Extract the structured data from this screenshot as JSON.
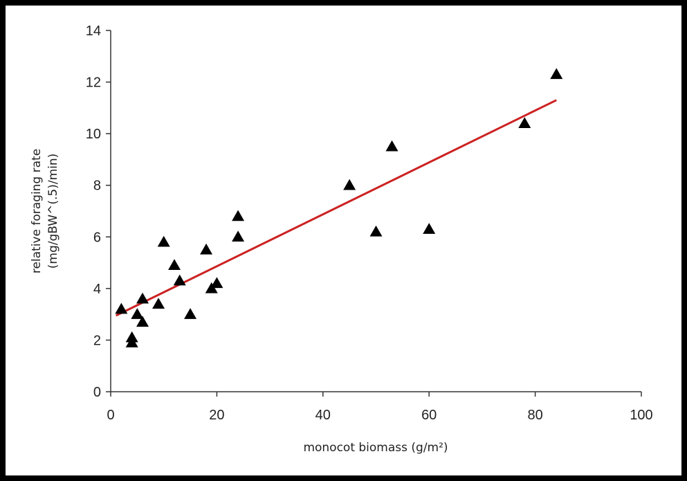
{
  "chart_data": {
    "type": "scatter",
    "title": "",
    "xlabel": "monocot biomass (g/m²)",
    "ylabel_line1": "relative foraging rate",
    "ylabel_line2": "(mg/gBW^(.5)/min)",
    "xlim": [
      0,
      100
    ],
    "ylim": [
      0,
      14
    ],
    "xticks": [
      0,
      20,
      40,
      60,
      80,
      100
    ],
    "yticks": [
      0,
      2,
      4,
      6,
      8,
      10,
      12,
      14
    ],
    "grid": false,
    "series": [
      {
        "marker": "triangle",
        "color": "#000000",
        "points": [
          {
            "x": 2,
            "y": 3.2
          },
          {
            "x": 4,
            "y": 2.1
          },
          {
            "x": 4,
            "y": 1.9
          },
          {
            "x": 5,
            "y": 3.0
          },
          {
            "x": 6,
            "y": 3.6
          },
          {
            "x": 6,
            "y": 2.7
          },
          {
            "x": 9,
            "y": 3.4
          },
          {
            "x": 10,
            "y": 5.8
          },
          {
            "x": 12,
            "y": 4.9
          },
          {
            "x": 13,
            "y": 4.3
          },
          {
            "x": 15,
            "y": 3.0
          },
          {
            "x": 18,
            "y": 5.5
          },
          {
            "x": 19,
            "y": 4.0
          },
          {
            "x": 20,
            "y": 4.2
          },
          {
            "x": 24,
            "y": 6.8
          },
          {
            "x": 24,
            "y": 6.0
          },
          {
            "x": 45,
            "y": 8.0
          },
          {
            "x": 50,
            "y": 6.2
          },
          {
            "x": 53,
            "y": 9.5
          },
          {
            "x": 60,
            "y": 6.3
          },
          {
            "x": 78,
            "y": 10.4
          },
          {
            "x": 84,
            "y": 12.3
          }
        ]
      }
    ],
    "trendline": {
      "color": "#cc2222",
      "points": [
        {
          "x": 1,
          "y": 2.95
        },
        {
          "x": 84,
          "y": 11.3
        }
      ]
    }
  }
}
